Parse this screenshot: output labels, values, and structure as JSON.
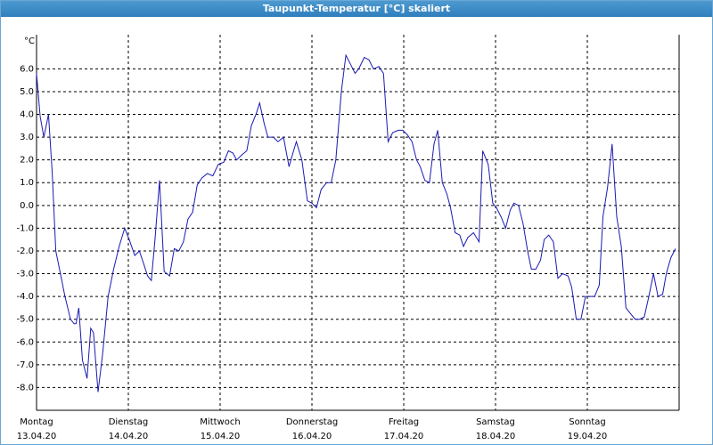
{
  "chart_data": {
    "type": "line",
    "title": "Taupunkt-Temperatur [°C] skaliert",
    "unit": "°C",
    "xlim": [
      0,
      7
    ],
    "xticks": [
      {
        "value": 0,
        "label": "Montag",
        "date": "13.04.20"
      },
      {
        "value": 1,
        "label": "Dienstag",
        "date": "14.04.20"
      },
      {
        "value": 2,
        "label": "Mittwoch",
        "date": "15.04.20"
      },
      {
        "value": 3,
        "label": "Donnerstag",
        "date": "16.04.20"
      },
      {
        "value": 4,
        "label": "Freitag",
        "date": "17.04.20"
      },
      {
        "value": 5,
        "label": "Samstag",
        "date": "18.04.20"
      },
      {
        "value": 6,
        "label": "Sonntag",
        "date": "19.04.20"
      }
    ],
    "ylim": [
      -9,
      7.5
    ],
    "yticks": [
      {
        "value": 6,
        "label": "6.0"
      },
      {
        "value": 5,
        "label": "5.0"
      },
      {
        "value": 4,
        "label": "4.0"
      },
      {
        "value": 3,
        "label": "3.0"
      },
      {
        "value": 2,
        "label": "2.0"
      },
      {
        "value": 1,
        "label": "1.0"
      },
      {
        "value": 0,
        "label": "0.0"
      },
      {
        "value": -1,
        "label": "-1.0"
      },
      {
        "value": -2,
        "label": "-2.0"
      },
      {
        "value": -3,
        "label": "-3.0"
      },
      {
        "value": -4,
        "label": "-4.0"
      },
      {
        "value": -5,
        "label": "-5.0"
      },
      {
        "value": -6,
        "label": "-6.0"
      },
      {
        "value": -7,
        "label": "-7.0"
      },
      {
        "value": -8,
        "label": "-8.0"
      }
    ],
    "grid": true,
    "x": [
      0,
      0.04,
      0.08,
      0.13,
      0.17,
      0.21,
      0.26,
      0.31,
      0.37,
      0.41,
      0.43,
      0.46,
      0.5,
      0.55,
      0.59,
      0.62,
      0.67,
      0.72,
      0.78,
      0.84,
      0.9,
      0.96,
      1.01,
      1.07,
      1.12,
      1.17,
      1.21,
      1.25,
      1.29,
      1.34,
      1.39,
      1.45,
      1.5,
      1.55,
      1.6,
      1.65,
      1.7,
      1.75,
      1.8,
      1.86,
      1.92,
      1.98,
      2.04,
      2.09,
      2.14,
      2.18,
      2.23,
      2.29,
      2.34,
      2.39,
      2.43,
      2.48,
      2.52,
      2.58,
      2.63,
      2.69,
      2.75,
      2.8,
      2.83,
      2.89,
      2.95,
      3,
      3.05,
      3.1,
      3.16,
      3.21,
      3.26,
      3.32,
      3.37,
      3.42,
      3.47,
      3.51,
      3.57,
      3.62,
      3.67,
      3.73,
      3.78,
      3.83,
      3.88,
      3.94,
      3.99,
      4.04,
      4.09,
      4.14,
      4.18,
      4.23,
      4.28,
      4.33,
      4.37,
      4.42,
      4.47,
      4.51,
      4.56,
      4.61,
      4.65,
      4.7,
      4.76,
      4.82,
      4.86,
      4.92,
      4.97,
      5.01,
      5.06,
      5.11,
      5.16,
      5.2,
      5.25,
      5.3,
      5.35,
      5.39,
      5.44,
      5.49,
      5.53,
      5.58,
      5.63,
      5.68,
      5.73,
      5.79,
      5.83,
      5.88,
      5.93,
      5.98,
      6.03,
      6.08,
      6.13,
      6.17,
      6.22,
      6.27,
      6.32,
      6.37,
      6.42,
      6.48,
      6.52,
      6.57,
      6.62,
      6.67,
      6.72,
      6.77,
      6.82,
      6.86,
      6.91,
      6.96
    ],
    "series": [
      {
        "color": "#1a1ab4",
        "values": [
          5.8,
          3.9,
          3,
          4,
          1.5,
          -2,
          -3,
          -4,
          -5,
          -5.2,
          -5.2,
          -4.5,
          -6.8,
          -7.6,
          -5.4,
          -5.6,
          -8.2,
          -6.5,
          -4,
          -2.8,
          -1.8,
          -1,
          -1.5,
          -2.2,
          -2,
          -2.6,
          -3.1,
          -3.3,
          -1.5,
          1.1,
          -2.9,
          -3.1,
          -1.9,
          -2,
          -1.6,
          -0.6,
          -0.3,
          0.9,
          1.2,
          1.4,
          1.3,
          1.8,
          1.9,
          2.4,
          2.3,
          2,
          2.2,
          2.4,
          3.5,
          4,
          4.5,
          3.6,
          3,
          3,
          2.8,
          3,
          1.7,
          2.4,
          2.8,
          2,
          0.2,
          0.1,
          -0.1,
          0.7,
          1,
          1,
          2,
          5,
          6.6,
          6.2,
          5.8,
          6,
          6.5,
          6.4,
          6,
          6.1,
          5.8,
          2.8,
          3.2,
          3.3,
          3.3,
          3.1,
          2.8,
          2,
          1.7,
          1.1,
          1,
          2.7,
          3.3,
          1,
          0.5,
          -0.1,
          -1.2,
          -1.3,
          -1.8,
          -1.4,
          -1.2,
          -1.6,
          2.4,
          1.8,
          0.1,
          -0.1,
          -0.5,
          -1,
          -0.2,
          0.1,
          0,
          -0.8,
          -2,
          -2.8,
          -2.8,
          -2.4,
          -1.5,
          -1.3,
          -1.6,
          -3.2,
          -3,
          -3.1,
          -3.6,
          -5,
          -5,
          -4,
          -4,
          -4,
          -3.5,
          -0.5,
          0.8,
          2.7,
          -0.5,
          -1.8,
          -4.5,
          -4.8,
          -5,
          -5,
          -4.9,
          -4,
          -3,
          -4,
          -3.9,
          -3,
          -2.3,
          -1.9
        ]
      }
    ]
  }
}
